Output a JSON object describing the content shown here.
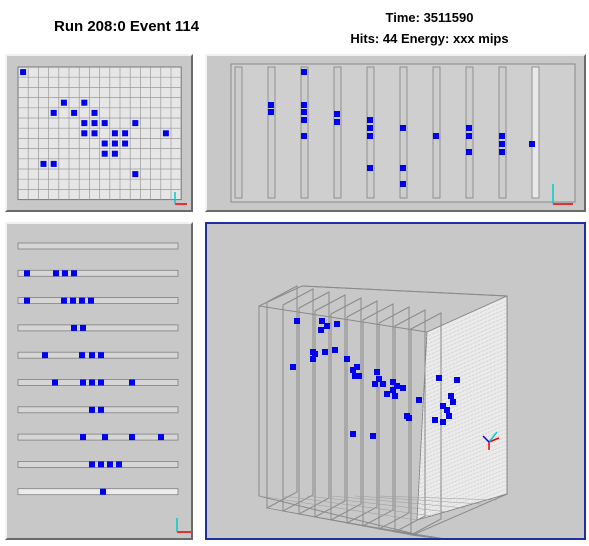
{
  "header": {
    "run_title": "Run 208:0 Event 114",
    "time_label": "Time: 3511590",
    "hits_label": "Hits: 44  Energy: xxx mips"
  },
  "views": [
    {
      "name": "front-view",
      "active": false
    },
    {
      "name": "side-view",
      "active": false
    },
    {
      "name": "top-view",
      "active": false
    },
    {
      "name": "3d-view",
      "active": true
    }
  ],
  "colors": {
    "hit": "#0000ee",
    "panel_bg": "#c8c8c8",
    "active_border": "#1f2fa6",
    "axis_x": "#ee0000",
    "axis_y": "#0000ee",
    "axis_z": "#00cccc"
  }
}
